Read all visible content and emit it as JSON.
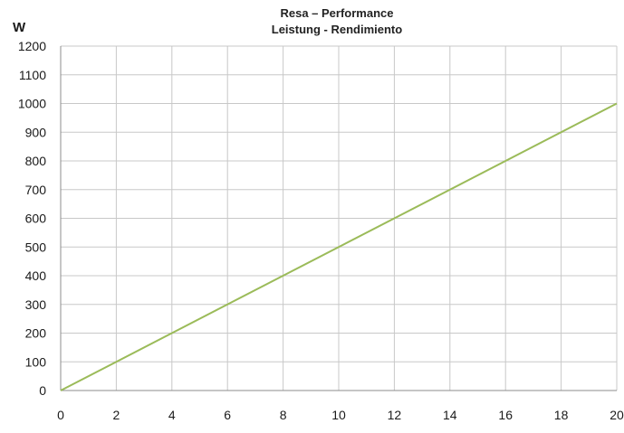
{
  "chart_data": {
    "type": "line",
    "title": "Resa – Performance",
    "subtitle": "Leistung - Rendimiento",
    "xlabel": "",
    "ylabel": "W",
    "x_ticks": [
      "0",
      "2",
      "4",
      "6",
      "8",
      "10",
      "12",
      "14",
      "16",
      "18",
      "20"
    ],
    "y_ticks": [
      "0",
      "100",
      "200",
      "300",
      "400",
      "500",
      "600",
      "700",
      "800",
      "900",
      "1000",
      "1100",
      "1200"
    ],
    "xlim": [
      0,
      20
    ],
    "ylim": [
      0,
      1200
    ],
    "grid": true,
    "legend": "none",
    "series": [
      {
        "color": "#9bbb59",
        "x": [
          0,
          20
        ],
        "y": [
          0,
          1000
        ]
      }
    ],
    "colors": {
      "grid": "#c8c8c8",
      "axis": "#8c8c8c",
      "line": "#9bbb59"
    }
  }
}
